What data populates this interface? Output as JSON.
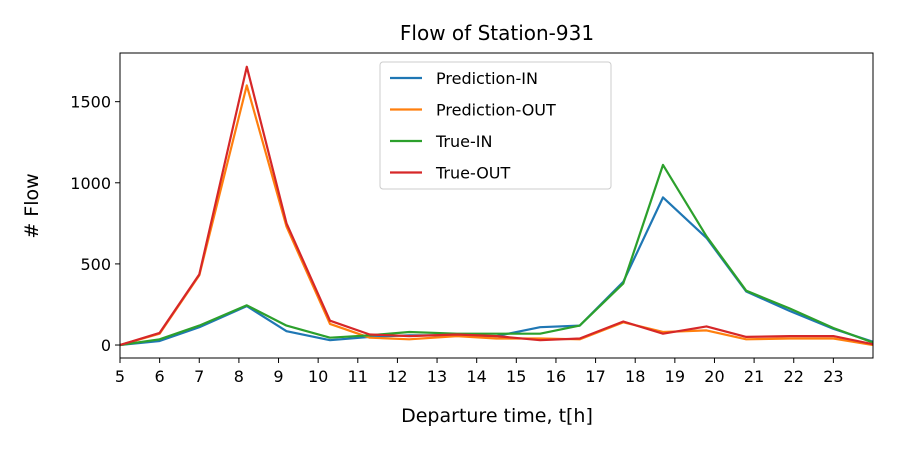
{
  "chart_data": {
    "type": "line",
    "title": "Flow of Station-931",
    "xlabel": "Departure time, t[h]",
    "ylabel": "# Flow",
    "xlim": [
      5,
      24
    ],
    "ylim": [
      -80,
      1800
    ],
    "x_ticks": [
      5,
      6,
      7,
      8,
      9,
      10,
      11,
      12,
      13,
      14,
      15,
      16,
      17,
      18,
      19,
      20,
      21,
      22,
      23
    ],
    "y_ticks": [
      0,
      500,
      1000,
      1500
    ],
    "legend_position": "upper-center",
    "x": [
      5.0,
      6.0,
      7.0,
      8.2,
      9.2,
      10.3,
      11.3,
      12.3,
      13.5,
      14.5,
      15.6,
      16.6,
      17.7,
      18.7,
      19.8,
      20.8,
      21.9,
      23.0,
      24.0
    ],
    "series": [
      {
        "name": "Prediction-IN",
        "color": "#1f77b4",
        "values": [
          0,
          25,
          110,
          240,
          85,
          30,
          50,
          60,
          60,
          55,
          110,
          120,
          390,
          910,
          660,
          330,
          210,
          100,
          20
        ]
      },
      {
        "name": "Prediction-OUT",
        "color": "#ff7f0e",
        "values": [
          0,
          70,
          430,
          1600,
          730,
          130,
          45,
          35,
          55,
          40,
          40,
          35,
          140,
          80,
          90,
          35,
          40,
          40,
          0
        ]
      },
      {
        "name": "True-IN",
        "color": "#2ca02c",
        "values": [
          0,
          35,
          120,
          245,
          120,
          45,
          60,
          80,
          70,
          70,
          70,
          120,
          380,
          1110,
          670,
          335,
          225,
          105,
          15
        ]
      },
      {
        "name": "True-OUT",
        "color": "#d62728",
        "values": [
          0,
          75,
          435,
          1715,
          750,
          150,
          65,
          55,
          65,
          55,
          30,
          40,
          145,
          70,
          115,
          50,
          55,
          55,
          5
        ]
      }
    ]
  }
}
